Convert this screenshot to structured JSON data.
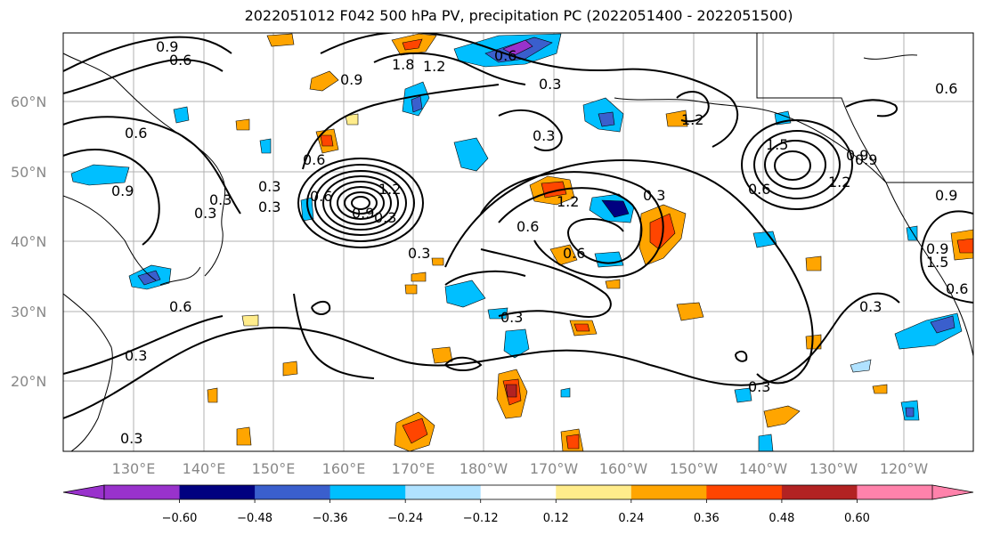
{
  "title": "2022051012 F042 500 hPa PV, precipitation PC (2022051400 - 2022051500)",
  "lon_labels": [
    "130°E",
    "140°E",
    "150°E",
    "160°E",
    "170°E",
    "180°W",
    "170°W",
    "160°W",
    "150°W",
    "140°W",
    "130°W",
    "120°W"
  ],
  "lat_labels": [
    "60°N",
    "50°N",
    "40°N",
    "30°N",
    "20°N"
  ],
  "colorbar": {
    "ticks": [
      "−0.60",
      "−0.48",
      "−0.36",
      "−0.24",
      "−0.12",
      "0.12",
      "0.24",
      "0.36",
      "0.48",
      "0.60"
    ],
    "colors": [
      "#9932CC",
      "#000080",
      "#3A5FCD",
      "#00BFFF",
      "#B0E2FF",
      "#FFFFFF",
      "#FFEC8B",
      "#FFA500",
      "#FF4500",
      "#B22222",
      "#FF82AB"
    ]
  },
  "contour_labels": [
    "0.9",
    "0.6",
    "1.8",
    "1.2",
    "0.6",
    "0.9",
    "0.3",
    "0.6",
    "0.3",
    "1.2",
    "0.6",
    "0.9",
    "0.3",
    "0.6",
    "0.9",
    "1.2",
    "1.5",
    "0.9",
    "0.6",
    "0.6",
    "1.2",
    "0.3",
    "0.6",
    "0.3",
    "1.2",
    "0.3",
    "0.6",
    "0.9",
    "0.9",
    "0.3",
    "0.3",
    "0.3",
    "0.6",
    "0.3",
    "0.6",
    "0.9",
    "1.5",
    "0.3",
    "0.3",
    "0.3",
    "0.3"
  ],
  "shading": [
    {
      "sign": "neg",
      "level": "-0.36"
    },
    {
      "sign": "pos",
      "level": "0.36"
    }
  ]
}
